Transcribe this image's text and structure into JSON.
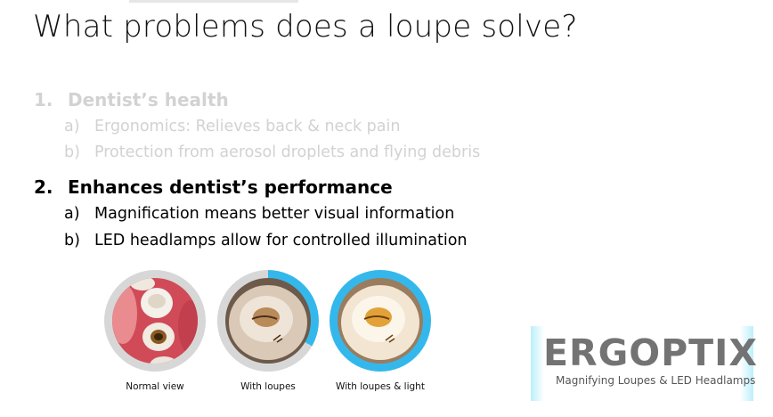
{
  "title": "What problems does a loupe solve?",
  "list": [
    {
      "number": "1.",
      "heading": "Dentist’s health",
      "sub": [
        {
          "letter": "a)",
          "text": "Ergonomics: Relieves back & neck pain"
        },
        {
          "letter": "b)",
          "text": "Protection from aerosol droplets and flying debris"
        }
      ]
    },
    {
      "number": "2.",
      "heading": "Enhances dentist’s performance",
      "sub": [
        {
          "letter": "a)",
          "text": "Magnification means better visual information"
        },
        {
          "letter": "b)",
          "text": "LED headlamps allow for controlled illumination"
        }
      ]
    }
  ],
  "images": [
    {
      "caption": "Normal view"
    },
    {
      "caption": "With loupes"
    },
    {
      "caption": "With loupes & light"
    }
  ],
  "logo": {
    "name": "ERGOPTIX",
    "tagline": "Magnifying Loupes & LED Headlamps"
  },
  "colors": {
    "faded_text": "#d2d2d2",
    "ring_gray": "#d7d7d7",
    "ring_blue": "#34b8ec",
    "logo_gray": "#737373"
  }
}
